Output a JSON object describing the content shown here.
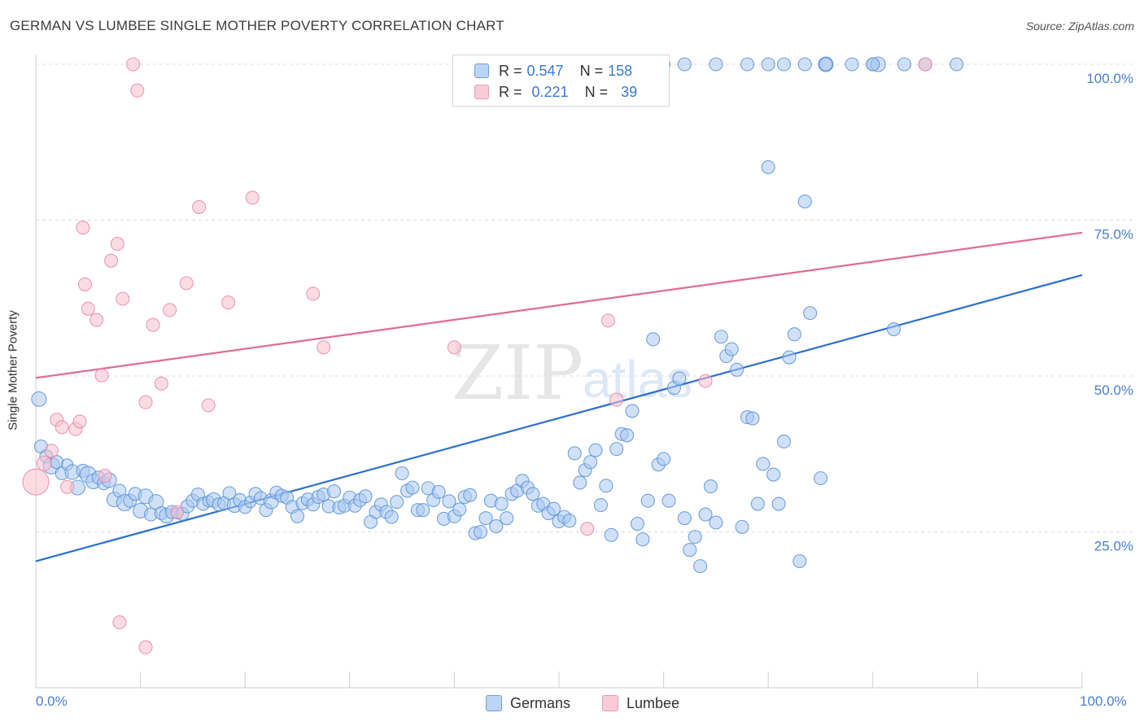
{
  "title": "GERMAN VS LUMBEE SINGLE MOTHER POVERTY CORRELATION CHART",
  "source": "Source: ZipAtlas.com",
  "watermark": {
    "zip": "ZIP",
    "atlas": "atlas"
  },
  "colors": {
    "german_fill": "#a9c8f0",
    "german_stroke": "#5b93d8",
    "german_line": "#2a6fd0",
    "lumbee_fill": "#f7bfd0",
    "lumbee_stroke": "#e98aa8",
    "lumbee_line": "#e06b93",
    "grid": "#dcdcdc",
    "axis_text": "#4a7fd0"
  },
  "legend": {
    "rows": [
      {
        "r_label": "R = ",
        "r_value": "0.547",
        "n_label": "N = ",
        "n_value": "158"
      },
      {
        "r_label": "R = ",
        "r_value": "0.221",
        "n_label": "N = ",
        "n_value": " 39"
      }
    ],
    "series": [
      "Germans",
      "Lumbee"
    ]
  },
  "chart_data": {
    "type": "scatter",
    "title": "GERMAN VS LUMBEE SINGLE MOTHER POVERTY CORRELATION CHART",
    "xlabel": "",
    "ylabel": "Single Mother Poverty",
    "xlim": [
      0,
      100
    ],
    "ylim": [
      0,
      100
    ],
    "x_tick_labels": [
      "0.0%",
      "100.0%"
    ],
    "y_ticks": [
      25,
      50,
      75,
      100
    ],
    "y_tick_labels": [
      "25.0%",
      "50.0%",
      "75.0%",
      "100.0%"
    ],
    "grid": true,
    "legend_position": "top-center",
    "series": [
      {
        "name": "Germans",
        "r": 0.547,
        "n": 158,
        "trend": {
          "x": [
            0,
            100
          ],
          "y": [
            20.3,
            66.2
          ]
        },
        "points": [
          [
            0.3,
            46.3,
            9
          ],
          [
            0.5,
            38.7,
            8
          ],
          [
            1.0,
            37.1,
            8
          ],
          [
            1.5,
            35.6,
            10
          ],
          [
            2.0,
            36.2,
            8
          ],
          [
            2.5,
            34.4,
            8
          ],
          [
            3.0,
            35.8,
            7
          ],
          [
            3.5,
            34.6,
            9
          ],
          [
            4.0,
            32.1,
            9
          ],
          [
            4.5,
            34.8,
            8
          ],
          [
            5.0,
            34.2,
            10
          ],
          [
            5.5,
            33.1,
            9
          ],
          [
            6.0,
            33.7,
            8
          ],
          [
            6.5,
            32.8,
            8
          ],
          [
            7.0,
            33.3,
            9
          ],
          [
            7.5,
            30.2,
            9
          ],
          [
            8.0,
            31.6,
            8
          ],
          [
            8.5,
            29.7,
            10
          ],
          [
            9.0,
            30.0,
            8
          ],
          [
            9.5,
            31.1,
            8
          ],
          [
            10.0,
            28.4,
            9
          ],
          [
            10.5,
            30.7,
            9
          ],
          [
            11.0,
            27.8,
            8
          ],
          [
            11.5,
            29.8,
            9
          ],
          [
            12.0,
            28.0,
            8
          ],
          [
            12.5,
            27.6,
            9
          ],
          [
            13.0,
            28.2,
            8
          ],
          [
            13.5,
            28.0,
            7
          ],
          [
            14.0,
            27.9,
            8
          ],
          [
            14.5,
            29.1,
            8
          ],
          [
            15.0,
            30.0,
            8
          ],
          [
            15.5,
            31.0,
            8
          ],
          [
            16.0,
            29.5,
            8
          ],
          [
            16.5,
            29.9,
            7
          ],
          [
            17.0,
            30.1,
            9
          ],
          [
            17.5,
            29.4,
            8
          ],
          [
            18.0,
            29.6,
            8
          ],
          [
            18.5,
            31.2,
            8
          ],
          [
            19.0,
            29.3,
            9
          ],
          [
            19.5,
            30.1,
            8
          ],
          [
            20.0,
            29.0,
            8
          ],
          [
            20.5,
            29.8,
            7
          ],
          [
            21.0,
            31.1,
            8
          ],
          [
            21.5,
            30.4,
            8
          ],
          [
            22.0,
            28.5,
            8
          ],
          [
            22.5,
            29.9,
            9
          ],
          [
            23.0,
            31.3,
            8
          ],
          [
            23.5,
            30.8,
            8
          ],
          [
            24.0,
            30.5,
            8
          ],
          [
            24.5,
            29.0,
            8
          ],
          [
            25.0,
            27.5,
            8
          ],
          [
            25.5,
            29.6,
            8
          ],
          [
            26.0,
            30.2,
            8
          ],
          [
            26.5,
            29.4,
            8
          ],
          [
            27.0,
            30.6,
            8
          ],
          [
            27.5,
            31.0,
            8
          ],
          [
            28.0,
            29.1,
            8
          ],
          [
            28.5,
            31.5,
            8
          ],
          [
            29.0,
            28.9,
            8
          ],
          [
            29.5,
            29.2,
            8
          ],
          [
            30.0,
            30.5,
            8
          ],
          [
            30.5,
            29.2,
            8
          ],
          [
            31.0,
            30.1,
            8
          ],
          [
            31.5,
            30.7,
            8
          ],
          [
            32.0,
            26.6,
            8
          ],
          [
            32.5,
            28.2,
            8
          ],
          [
            33.0,
            29.4,
            8
          ],
          [
            33.5,
            28.2,
            8
          ],
          [
            34.0,
            27.4,
            8
          ],
          [
            34.5,
            29.8,
            8
          ],
          [
            35.0,
            34.4,
            8
          ],
          [
            35.5,
            31.6,
            8
          ],
          [
            36.0,
            32.1,
            8
          ],
          [
            36.5,
            28.5,
            8
          ],
          [
            37.0,
            28.5,
            8
          ],
          [
            37.5,
            32.0,
            8
          ],
          [
            38.0,
            30.1,
            8
          ],
          [
            38.5,
            31.4,
            8
          ],
          [
            39.0,
            27.1,
            8
          ],
          [
            39.5,
            29.9,
            8
          ],
          [
            40.0,
            27.5,
            8
          ],
          [
            40.5,
            28.6,
            8
          ],
          [
            41.0,
            30.6,
            8
          ],
          [
            41.5,
            30.9,
            8
          ],
          [
            42.0,
            24.8,
            8
          ],
          [
            42.5,
            25.0,
            8
          ],
          [
            43.0,
            27.2,
            8
          ],
          [
            43.5,
            30.0,
            8
          ],
          [
            44.0,
            25.9,
            8
          ],
          [
            44.5,
            29.5,
            8
          ],
          [
            45.0,
            27.2,
            8
          ],
          [
            45.5,
            31.1,
            8
          ],
          [
            46.0,
            31.6,
            8
          ],
          [
            46.5,
            33.2,
            8
          ],
          [
            47.0,
            32.1,
            8
          ],
          [
            47.5,
            31.1,
            8
          ],
          [
            48.0,
            29.2,
            8
          ],
          [
            48.5,
            29.5,
            8
          ],
          [
            49.0,
            28.0,
            8
          ],
          [
            49.5,
            28.7,
            8
          ],
          [
            50.0,
            26.7,
            8
          ],
          [
            50.5,
            27.4,
            8
          ],
          [
            51.0,
            26.8,
            8
          ],
          [
            51.5,
            37.6,
            8
          ],
          [
            52.0,
            32.9,
            8
          ],
          [
            52.5,
            34.9,
            8
          ],
          [
            53.0,
            36.2,
            8
          ],
          [
            53.5,
            38.1,
            8
          ],
          [
            54.0,
            29.3,
            8
          ],
          [
            54.5,
            32.4,
            8
          ],
          [
            55.0,
            24.5,
            8
          ],
          [
            55.5,
            38.3,
            8
          ],
          [
            56.0,
            40.7,
            8
          ],
          [
            56.5,
            40.5,
            8
          ],
          [
            57.0,
            44.4,
            8
          ],
          [
            57.5,
            26.3,
            8
          ],
          [
            58.0,
            23.8,
            8
          ],
          [
            58.5,
            30.0,
            8
          ],
          [
            59.0,
            55.9,
            8
          ],
          [
            59.5,
            35.8,
            8
          ],
          [
            60.0,
            36.7,
            8
          ],
          [
            60.5,
            30.0,
            8
          ],
          [
            61.0,
            48.1,
            8
          ],
          [
            61.5,
            49.6,
            8
          ],
          [
            62.0,
            27.2,
            8
          ],
          [
            62.5,
            22.1,
            8
          ],
          [
            63.0,
            24.2,
            8
          ],
          [
            63.5,
            19.5,
            8
          ],
          [
            64.0,
            27.8,
            8
          ],
          [
            64.5,
            32.3,
            8
          ],
          [
            65.0,
            26.5,
            8
          ],
          [
            65.5,
            56.3,
            8
          ],
          [
            66.0,
            53.2,
            8
          ],
          [
            66.5,
            54.3,
            8
          ],
          [
            67.0,
            51.0,
            8
          ],
          [
            67.5,
            25.8,
            8
          ],
          [
            68.0,
            43.4,
            8
          ],
          [
            68.5,
            43.2,
            8
          ],
          [
            69.0,
            29.5,
            8
          ],
          [
            69.5,
            35.9,
            8
          ],
          [
            70.0,
            83.5,
            8
          ],
          [
            70.5,
            34.2,
            8
          ],
          [
            71.0,
            29.5,
            8
          ],
          [
            71.5,
            39.5,
            8
          ],
          [
            72.0,
            53.0,
            8
          ],
          [
            72.5,
            56.7,
            8
          ],
          [
            73.0,
            20.3,
            8
          ],
          [
            73.5,
            78.0,
            8
          ],
          [
            74.0,
            60.1,
            8
          ],
          [
            75.0,
            33.6,
            8
          ],
          [
            82.0,
            57.5,
            8
          ],
          [
            65.0,
            100,
            8
          ],
          [
            70.0,
            100,
            8
          ],
          [
            71.5,
            100,
            8
          ],
          [
            73.5,
            100,
            8
          ],
          [
            75.5,
            100,
            9
          ],
          [
            78.0,
            100,
            8
          ],
          [
            80.0,
            100,
            8
          ],
          [
            80.5,
            100,
            9
          ],
          [
            83.0,
            100,
            8
          ],
          [
            85.0,
            100,
            8
          ],
          [
            88.0,
            100,
            8
          ],
          [
            75.5,
            100,
            8
          ],
          [
            80.0,
            100,
            8
          ],
          [
            62.0,
            100,
            8
          ],
          [
            55.0,
            100,
            8
          ],
          [
            60.0,
            100,
            8
          ],
          [
            68.0,
            100,
            8
          ]
        ]
      },
      {
        "name": "Lumbee",
        "r": 0.221,
        "n": 39,
        "trend": {
          "x": [
            0,
            100
          ],
          "y": [
            49.7,
            73.0
          ]
        },
        "points": [
          [
            0,
            33,
            16
          ],
          [
            0.8,
            36,
            9
          ],
          [
            1.5,
            38,
            8
          ],
          [
            2.0,
            43,
            8
          ],
          [
            2.5,
            41.8,
            8
          ],
          [
            3.0,
            32.2,
            8
          ],
          [
            3.8,
            41.5,
            8
          ],
          [
            4.2,
            42.7,
            8
          ],
          [
            4.5,
            73.8,
            8
          ],
          [
            4.7,
            64.7,
            8
          ],
          [
            5.0,
            60.8,
            8
          ],
          [
            5.8,
            59,
            8
          ],
          [
            6.6,
            34,
            8
          ],
          [
            7.2,
            68.5,
            8
          ],
          [
            7.8,
            71.2,
            8
          ],
          [
            8.3,
            62.4,
            8
          ],
          [
            9.3,
            100,
            8
          ],
          [
            9.7,
            95.8,
            8
          ],
          [
            10.5,
            45.8,
            8
          ],
          [
            11.2,
            58.2,
            8
          ],
          [
            12.0,
            48.8,
            8
          ],
          [
            12.8,
            60.6,
            8
          ],
          [
            13.5,
            28.2,
            8
          ],
          [
            14.4,
            64.9,
            8
          ],
          [
            15.6,
            77.1,
            8
          ],
          [
            16.5,
            45.3,
            8
          ],
          [
            18.4,
            61.8,
            8
          ],
          [
            20.7,
            78.6,
            8
          ],
          [
            26.5,
            63.2,
            8
          ],
          [
            27.5,
            54.6,
            8
          ],
          [
            40.0,
            54.6,
            8
          ],
          [
            52.7,
            25.5,
            8
          ],
          [
            54.7,
            58.9,
            8
          ],
          [
            55.5,
            46.2,
            8
          ],
          [
            64.0,
            49.2,
            8
          ],
          [
            85.0,
            100,
            8
          ],
          [
            8.0,
            10.5,
            8
          ],
          [
            10.5,
            6.5,
            8
          ],
          [
            6.3,
            50.1,
            8
          ]
        ]
      }
    ]
  }
}
